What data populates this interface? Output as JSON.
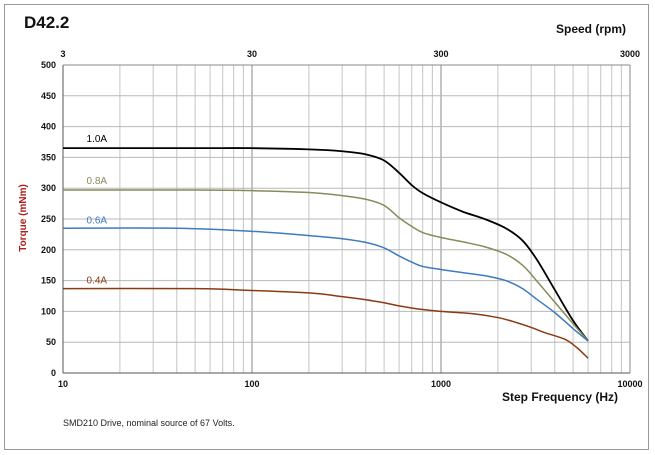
{
  "chart_data": {
    "type": "line",
    "title": "D42.2",
    "xlabel": "Step Frequency (Hz)",
    "x2label": "Speed (rpm)",
    "ylabel": "Torque (mNm)",
    "x_scale": "log",
    "xlim": [
      10,
      10000
    ],
    "x_ticks": [
      10,
      100,
      1000,
      10000
    ],
    "x_tick_labels": [
      "10",
      "100",
      "1000",
      "10000"
    ],
    "x2_ticks_at_x": [
      10,
      100,
      1000,
      10000
    ],
    "x2_tick_labels": [
      "3",
      "30",
      "300",
      "3000"
    ],
    "ylim": [
      0,
      500
    ],
    "y_ticks": [
      0,
      50,
      100,
      150,
      200,
      250,
      300,
      350,
      400,
      450,
      500
    ],
    "grid": true,
    "caption": "SMD210  Drive, nominal source of 67 Volts.",
    "series": [
      {
        "name": "1.0A",
        "color": "#000000",
        "label_at": [
          13,
          375
        ],
        "points": [
          [
            10,
            365
          ],
          [
            50,
            365
          ],
          [
            100,
            365
          ],
          [
            200,
            363
          ],
          [
            300,
            360
          ],
          [
            400,
            355
          ],
          [
            500,
            345
          ],
          [
            600,
            325
          ],
          [
            700,
            305
          ],
          [
            800,
            292
          ],
          [
            1000,
            277
          ],
          [
            1300,
            262
          ],
          [
            1700,
            250
          ],
          [
            2200,
            235
          ],
          [
            2700,
            215
          ],
          [
            3200,
            185
          ],
          [
            4000,
            135
          ],
          [
            5000,
            85
          ],
          [
            6000,
            52
          ]
        ]
      },
      {
        "name": "0.8A",
        "color": "#8a8a5c",
        "label_at": [
          13,
          307
        ],
        "points": [
          [
            10,
            297
          ],
          [
            50,
            297
          ],
          [
            100,
            296
          ],
          [
            200,
            293
          ],
          [
            300,
            288
          ],
          [
            400,
            282
          ],
          [
            500,
            272
          ],
          [
            600,
            252
          ],
          [
            700,
            238
          ],
          [
            800,
            228
          ],
          [
            1000,
            220
          ],
          [
            1300,
            213
          ],
          [
            1700,
            205
          ],
          [
            2200,
            193
          ],
          [
            2700,
            175
          ],
          [
            3200,
            150
          ],
          [
            4000,
            115
          ],
          [
            5000,
            80
          ],
          [
            6000,
            52
          ]
        ]
      },
      {
        "name": "0.6A",
        "color": "#3d7bbf",
        "label_at": [
          13,
          243
        ],
        "points": [
          [
            10,
            235
          ],
          [
            40,
            235
          ],
          [
            100,
            230
          ],
          [
            200,
            223
          ],
          [
            300,
            218
          ],
          [
            400,
            212
          ],
          [
            500,
            203
          ],
          [
            600,
            190
          ],
          [
            700,
            180
          ],
          [
            800,
            173
          ],
          [
            1000,
            168
          ],
          [
            1300,
            163
          ],
          [
            1700,
            158
          ],
          [
            2200,
            150
          ],
          [
            2700,
            137
          ],
          [
            3200,
            120
          ],
          [
            4000,
            98
          ],
          [
            5000,
            72
          ],
          [
            6000,
            52
          ]
        ]
      },
      {
        "name": "0.4A",
        "color": "#8b3b12",
        "label_at": [
          13,
          145
        ],
        "points": [
          [
            10,
            137
          ],
          [
            50,
            137
          ],
          [
            100,
            134
          ],
          [
            200,
            130
          ],
          [
            300,
            124
          ],
          [
            400,
            119
          ],
          [
            500,
            114
          ],
          [
            600,
            109
          ],
          [
            800,
            103
          ],
          [
            1000,
            100
          ],
          [
            1500,
            96
          ],
          [
            2000,
            90
          ],
          [
            2500,
            82
          ],
          [
            3000,
            74
          ],
          [
            3500,
            66
          ],
          [
            4500,
            55
          ],
          [
            5200,
            42
          ],
          [
            6000,
            24
          ]
        ]
      }
    ]
  }
}
